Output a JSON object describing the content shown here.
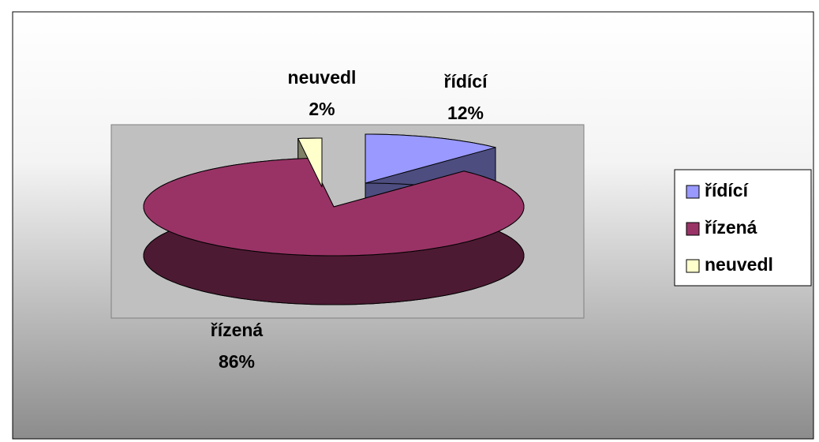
{
  "chart_data": {
    "type": "pie",
    "categories": [
      "řídící",
      "řízená",
      "neuvedl"
    ],
    "values": [
      12,
      86,
      2
    ],
    "value_labels": [
      "12%",
      "86%",
      "2%"
    ],
    "colors": [
      "#9999ff",
      "#993366",
      "#ffffcc"
    ],
    "legend": "right"
  }
}
